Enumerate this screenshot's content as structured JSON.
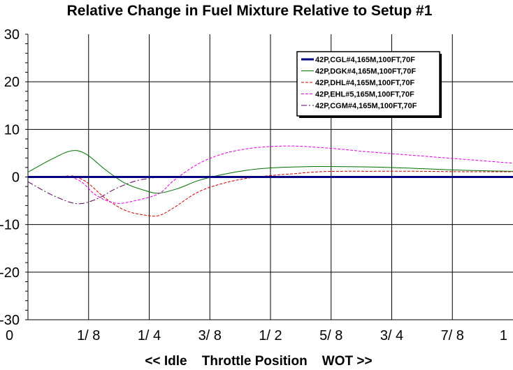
{
  "chart_data": {
    "type": "line",
    "title": "Relative Change in Fuel Mixture Relative to Setup #1",
    "xlabel": "<< Idle    Throttle Position    WOT >>",
    "ylabel": "",
    "xlim": [
      0,
      1
    ],
    "ylim": [
      -30,
      30
    ],
    "x_ticks": [
      {
        "value": 0,
        "label": "0"
      },
      {
        "value": 0.125,
        "label": "1/ 8"
      },
      {
        "value": 0.25,
        "label": "1/ 4"
      },
      {
        "value": 0.375,
        "label": "3/ 8"
      },
      {
        "value": 0.5,
        "label": "1/ 2"
      },
      {
        "value": 0.625,
        "label": "5/ 8"
      },
      {
        "value": 0.75,
        "label": "3/ 4"
      },
      {
        "value": 0.875,
        "label": "7/ 8"
      },
      {
        "value": 1,
        "label": "1"
      }
    ],
    "y_ticks": [
      {
        "value": 30,
        "label": "30"
      },
      {
        "value": 20,
        "label": "20"
      },
      {
        "value": 10,
        "label": "10"
      },
      {
        "value": 0,
        "label": "0"
      },
      {
        "value": -10,
        "label": "-10"
      },
      {
        "value": -20,
        "label": "-20"
      },
      {
        "value": -30,
        "label": "-30"
      }
    ],
    "grid": true,
    "legend_position": "top-right",
    "series": [
      {
        "name": "42P,CGL#4,165M,100FT,70F",
        "color": "#000080",
        "style": "solid-thick",
        "x": [
          0,
          1
        ],
        "y": [
          0,
          0
        ]
      },
      {
        "name": "42P,DGK#4,165M,100FT,70F",
        "color": "#007000",
        "style": "solid",
        "x": [
          0,
          0.05,
          0.09,
          0.12,
          0.16,
          0.2,
          0.24,
          0.27,
          0.31,
          0.35,
          0.4,
          0.45,
          0.5,
          0.55,
          0.6,
          0.7,
          0.8,
          0.9,
          1.0
        ],
        "y": [
          1.0,
          3.8,
          5.5,
          4.8,
          1.5,
          -1.3,
          -2.8,
          -3.4,
          -2.4,
          -0.8,
          0.5,
          1.4,
          1.9,
          2.1,
          2.2,
          2.1,
          1.8,
          1.4,
          1.2
        ]
      },
      {
        "name": "42P,DHL#4,165M,100FT,70F",
        "color": "#cc0000",
        "style": "dashed",
        "x": [
          0.09,
          0.12,
          0.16,
          0.2,
          0.24,
          0.27,
          0.3,
          0.35,
          0.4,
          0.45,
          0.5,
          0.55,
          0.6,
          0.65,
          0.7,
          0.8,
          0.9,
          1.0
        ],
        "y": [
          0.3,
          -1.0,
          -4.5,
          -7.0,
          -8.0,
          -8.1,
          -6.5,
          -3.2,
          -1.4,
          -0.3,
          0.3,
          0.7,
          1.1,
          1.2,
          1.2,
          1.2,
          1.1,
          1.1
        ]
      },
      {
        "name": "42P,EHL#5,165M,100FT,70F",
        "color": "#e000e0",
        "style": "dashed",
        "x": [
          0.08,
          0.11,
          0.14,
          0.18,
          0.22,
          0.27,
          0.3,
          0.35,
          0.4,
          0.45,
          0.5,
          0.55,
          0.6,
          0.65,
          0.7,
          0.8,
          0.9,
          1.0
        ],
        "y": [
          0.3,
          -1.0,
          -3.8,
          -5.5,
          -5.0,
          -3.5,
          -0.8,
          2.7,
          4.8,
          5.9,
          6.4,
          6.5,
          6.2,
          5.8,
          5.3,
          4.5,
          3.7,
          2.9
        ]
      },
      {
        "name": "42P,CGM#4,165M,100FT,70F",
        "color": "#5a005a",
        "style": "dashdot",
        "x": [
          0,
          0.05,
          0.1,
          0.14,
          0.18,
          0.22,
          0.25,
          0.27
        ],
        "y": [
          -1.0,
          -3.8,
          -5.6,
          -4.7,
          -2.5,
          -0.9,
          -0.3,
          0.0
        ]
      }
    ]
  }
}
